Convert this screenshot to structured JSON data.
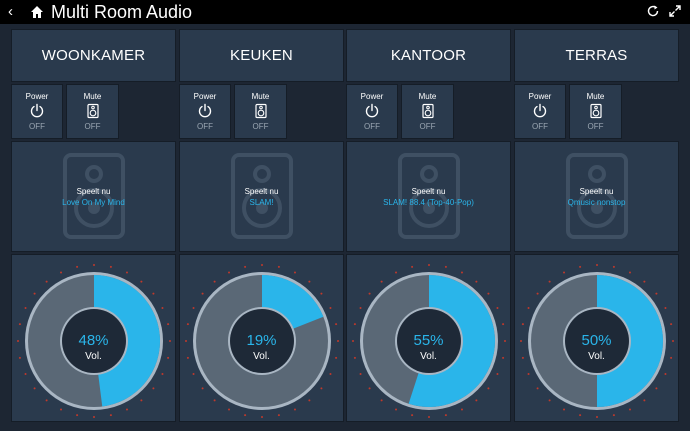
{
  "app": {
    "title": "Multi Room Audio",
    "back_icon": "chevron-left-icon",
    "home_icon": "home-icon",
    "refresh_icon": "refresh-icon",
    "fullscreen_icon": "fullscreen-icon"
  },
  "colors": {
    "accent": "#2ab5ea",
    "tile": "#2a3a4d",
    "background": "#1d2633",
    "ring_dark": "#5a6876",
    "tick_red": "#c0392b"
  },
  "rooms": [
    {
      "name": "WOONKAMER",
      "power_label": "Power",
      "power_state": "OFF",
      "mute_label": "Mute",
      "mute_state": "OFF",
      "now_playing_label": "Speelt nu",
      "now_playing": "Love On My Mind",
      "volume": 48,
      "volume_text": "48%",
      "volume_label": "Vol."
    },
    {
      "name": "KEUKEN",
      "power_label": "Power",
      "power_state": "OFF",
      "mute_label": "Mute",
      "mute_state": "OFF",
      "now_playing_label": "Speelt nu",
      "now_playing": "SLAM!",
      "volume": 19,
      "volume_text": "19%",
      "volume_label": "Vol."
    },
    {
      "name": "KANTOOR",
      "power_label": "Power",
      "power_state": "OFF",
      "mute_label": "Mute",
      "mute_state": "OFF",
      "now_playing_label": "Speelt nu",
      "now_playing": "SLAM! 88.4 (Top-40-Pop)",
      "volume": 55,
      "volume_text": "55%",
      "volume_label": "Vol."
    },
    {
      "name": "TERRAS",
      "power_label": "Power",
      "power_state": "OFF",
      "mute_label": "Mute",
      "mute_state": "OFF",
      "now_playing_label": "Speelt nu",
      "now_playing": "Qmusic nonstop",
      "volume": 50,
      "volume_text": "50%",
      "volume_label": "Vol."
    }
  ]
}
